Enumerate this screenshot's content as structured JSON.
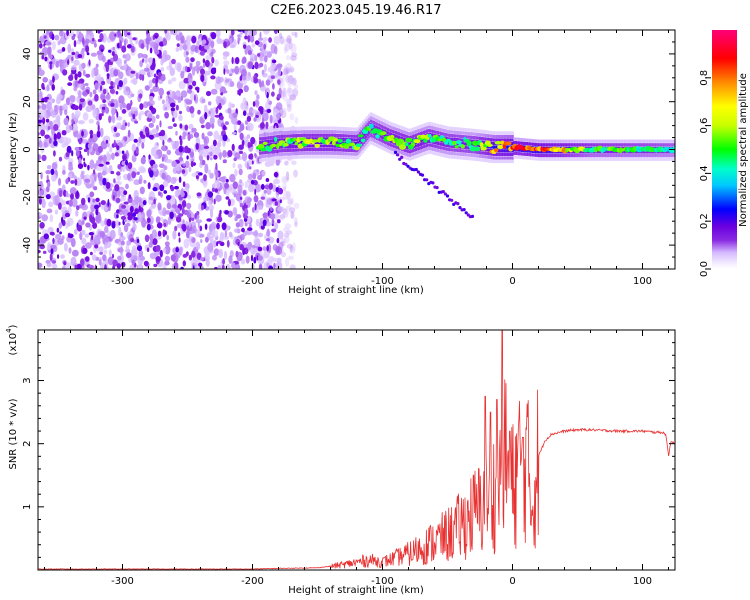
{
  "title": "C2E6.2023.045.19.46.R17",
  "colors": {
    "axis": "#000000",
    "snr_line": "#e83030"
  },
  "chart_data": [
    {
      "type": "heatmap",
      "name": "spectrogram",
      "xlabel": "Height of straight line (km)",
      "ylabel": "Frequency (Hz)",
      "xlim": [
        -365,
        125
      ],
      "ylim": [
        -50,
        50
      ],
      "xticks": [
        -300,
        -200,
        -100,
        0,
        100
      ],
      "yticks": [
        -40,
        -20,
        0,
        20,
        40
      ],
      "colorbar": {
        "label": "Normalized spectral amplitude",
        "range": [
          0,
          1
        ],
        "ticks": [
          0.0,
          0.2,
          0.4,
          0.6,
          0.8
        ],
        "colormap": "rainbow (white-lavender-purple-blue-cyan-green-yellow-orange-red-magenta)"
      },
      "features": {
        "noise_region_x": [
          -365,
          -178
        ],
        "signal_trace": [
          {
            "x": -195,
            "f": 1.5,
            "amp": 0.55
          },
          {
            "x": -180,
            "f": 2.5,
            "amp": 0.55
          },
          {
            "x": -160,
            "f": 3,
            "amp": 0.6
          },
          {
            "x": -140,
            "f": 3,
            "amp": 0.6
          },
          {
            "x": -120,
            "f": 2.5,
            "amp": 0.55
          },
          {
            "x": -110,
            "f": 9,
            "amp": 0.5
          },
          {
            "x": -95,
            "f": 5,
            "amp": 0.55
          },
          {
            "x": -80,
            "f": 2,
            "amp": 0.6
          },
          {
            "x": -65,
            "f": 5,
            "amp": 0.55
          },
          {
            "x": -50,
            "f": 3,
            "amp": 0.5
          },
          {
            "x": -30,
            "f": 2,
            "amp": 0.5
          },
          {
            "x": -15,
            "f": 1,
            "amp": 0.75
          },
          {
            "x": 0,
            "f": 1,
            "amp": 0.85
          },
          {
            "x": 20,
            "f": 0,
            "amp": 0.9
          },
          {
            "x": 60,
            "f": 0,
            "amp": 0.55
          },
          {
            "x": 100,
            "f": 0,
            "amp": 0.5
          },
          {
            "x": 125,
            "f": 0,
            "amp": 0.45
          }
        ]
      }
    },
    {
      "type": "line",
      "name": "snr",
      "xlabel": "Height of straight line (km)",
      "ylabel": "SNR (10 * v/v)",
      "multiplier": "(x10",
      "multiplier_exp": "4",
      "xlim": [
        -365,
        125
      ],
      "ylim": [
        0,
        3.8
      ],
      "xticks": [
        -300,
        -200,
        -100,
        0,
        100
      ],
      "yticks": [
        1,
        2,
        3
      ],
      "x": [
        -365,
        -300,
        -250,
        -200,
        -180,
        -150,
        -130,
        -110,
        -100,
        -90,
        -80,
        -70,
        -60,
        -50,
        -40,
        -30,
        -20,
        -15,
        -10,
        -8,
        -5,
        0,
        5,
        10,
        15,
        20,
        25,
        30,
        40,
        50,
        60,
        80,
        100,
        110,
        115,
        118,
        120,
        122,
        125
      ],
      "y": [
        0.01,
        0.01,
        0.01,
        0.01,
        0.02,
        0.03,
        0.08,
        0.15,
        0.12,
        0.18,
        0.25,
        0.35,
        0.45,
        0.55,
        0.7,
        0.9,
        1.05,
        1.2,
        1.4,
        1.6,
        1.8,
        1.3,
        1.7,
        1.9,
        1.0,
        1.8,
        2.05,
        2.15,
        2.2,
        2.22,
        2.22,
        2.2,
        2.2,
        2.18,
        2.18,
        2.15,
        1.8,
        2.05,
        2.0
      ],
      "spikes": [
        {
          "x": -21,
          "y": 2.75
        },
        {
          "x": -17,
          "y": 2.5
        },
        {
          "x": -12,
          "y": 2.7
        },
        {
          "x": -8,
          "y": 3.8
        },
        {
          "x": -2,
          "y": 2.2
        },
        {
          "x": 8,
          "y": 2.1
        }
      ]
    }
  ]
}
